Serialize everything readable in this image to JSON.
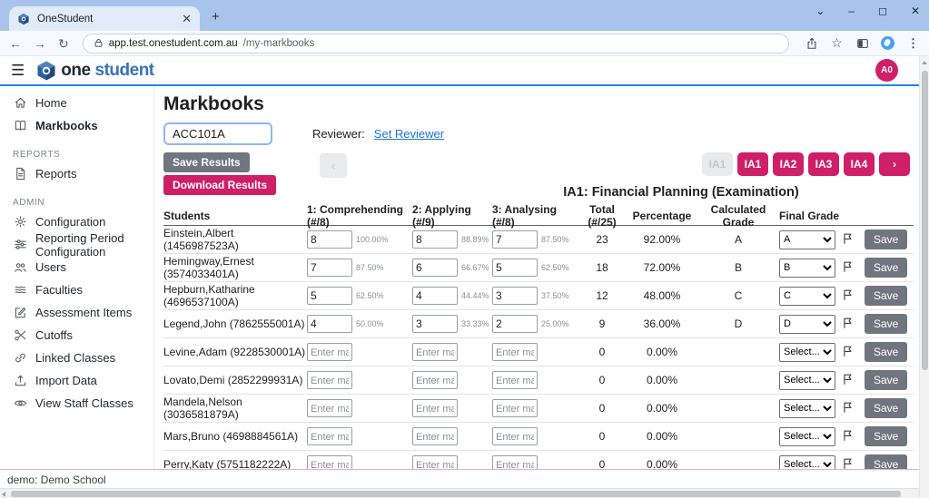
{
  "colors": {
    "accent_pink": "#D01F69",
    "save_gray": "#6F7680",
    "link_blue": "#1A73E8",
    "brand_blue": "#3573B9",
    "header_rule_blue": "#1E88E5"
  },
  "browser": {
    "tab_title": "OneStudent",
    "url_domain": "app.test.onestudent.com.au",
    "url_path": "/my-markbooks"
  },
  "header": {
    "logo_one": "one",
    "logo_student": "student",
    "avatar_initials": "A0"
  },
  "sidebar": {
    "groups": [
      {
        "heading": "",
        "items": [
          {
            "icon": "home",
            "label": "Home",
            "active": false
          },
          {
            "icon": "book",
            "label": "Markbooks",
            "active": true
          }
        ]
      },
      {
        "heading": "REPORTS",
        "items": [
          {
            "icon": "document",
            "label": "Reports",
            "active": false
          }
        ]
      },
      {
        "heading": "ADMIN",
        "items": [
          {
            "icon": "gear",
            "label": "Configuration",
            "active": false
          },
          {
            "icon": "sliders",
            "label": "Reporting Period Configuration",
            "active": false
          },
          {
            "icon": "users",
            "label": "Users",
            "active": false
          },
          {
            "icon": "layers",
            "label": "Faculties",
            "active": false
          },
          {
            "icon": "edit",
            "label": "Assessment Items",
            "active": false
          },
          {
            "icon": "scissors",
            "label": "Cutoffs",
            "active": false
          },
          {
            "icon": "link",
            "label": "Linked Classes",
            "active": false
          },
          {
            "icon": "upload",
            "label": "Import Data",
            "active": false
          },
          {
            "icon": "eye",
            "label": "View Staff Classes",
            "active": false
          }
        ]
      }
    ]
  },
  "main": {
    "page_title": "Markbooks",
    "class_selector_value": "ACC101A",
    "reviewer_label": "Reviewer:",
    "set_reviewer_link": "Set Reviewer",
    "save_results_label": "Save Results",
    "download_results_label": "Download Results",
    "prev_button_label": "‹",
    "ia_buttons": [
      {
        "label": "IA1",
        "disabled": true
      },
      {
        "label": "IA1",
        "disabled": false
      },
      {
        "label": "IA2",
        "disabled": false
      },
      {
        "label": "IA3",
        "disabled": false
      },
      {
        "label": "IA4",
        "disabled": false
      },
      {
        "label": "›",
        "disabled": false
      }
    ],
    "assessment_title": "IA1: Financial Planning (Examination)"
  },
  "table": {
    "headers": [
      "Students",
      "1: Comprehending (#/8)",
      "2: Applying (#/9)",
      "3: Analysing (#/8)",
      "Total (#/25)",
      "Percentage",
      "Calculated Grade",
      "Final Grade"
    ],
    "mark_placeholder": "Enter mark",
    "save_label": "Save",
    "rows": [
      {
        "student": "Einstein,Albert (1456987523A)",
        "marks": [
          {
            "value": "8",
            "pct": "100.00%"
          },
          {
            "value": "8",
            "pct": "88.89%"
          },
          {
            "value": "7",
            "pct": "87.50%"
          }
        ],
        "total": "23",
        "percentage": "92.00%",
        "calculated_grade": "A",
        "final_grade": "A"
      },
      {
        "student": "Hemingway,Ernest (3574033401A)",
        "marks": [
          {
            "value": "7",
            "pct": "87.50%"
          },
          {
            "value": "6",
            "pct": "66.67%"
          },
          {
            "value": "5",
            "pct": "62.50%"
          }
        ],
        "total": "18",
        "percentage": "72.00%",
        "calculated_grade": "B",
        "final_grade": "B"
      },
      {
        "student": "Hepburn,Katharine (4696537100A)",
        "marks": [
          {
            "value": "5",
            "pct": "62.50%"
          },
          {
            "value": "4",
            "pct": "44.44%"
          },
          {
            "value": "3",
            "pct": "37.50%"
          }
        ],
        "total": "12",
        "percentage": "48.00%",
        "calculated_grade": "C",
        "final_grade": "C"
      },
      {
        "student": "Legend,John (7862555001A)",
        "marks": [
          {
            "value": "4",
            "pct": "50.00%"
          },
          {
            "value": "3",
            "pct": "33.33%"
          },
          {
            "value": "2",
            "pct": "25.00%"
          }
        ],
        "total": "9",
        "percentage": "36.00%",
        "calculated_grade": "D",
        "final_grade": "D"
      },
      {
        "student": "Levine,Adam (9228530001A)",
        "marks": [
          {
            "value": "",
            "pct": ""
          },
          {
            "value": "",
            "pct": ""
          },
          {
            "value": "",
            "pct": ""
          }
        ],
        "total": "0",
        "percentage": "0.00%",
        "calculated_grade": "",
        "final_grade": "Select..."
      },
      {
        "student": "Lovato,Demi (2852299931A)",
        "marks": [
          {
            "value": "",
            "pct": ""
          },
          {
            "value": "",
            "pct": ""
          },
          {
            "value": "",
            "pct": ""
          }
        ],
        "total": "0",
        "percentage": "0.00%",
        "calculated_grade": "",
        "final_grade": "Select..."
      },
      {
        "student": "Mandela,Nelson (3036581879A)",
        "marks": [
          {
            "value": "",
            "pct": ""
          },
          {
            "value": "",
            "pct": ""
          },
          {
            "value": "",
            "pct": ""
          }
        ],
        "total": "0",
        "percentage": "0.00%",
        "calculated_grade": "",
        "final_grade": "Select..."
      },
      {
        "student": "Mars,Bruno (4698884561A)",
        "marks": [
          {
            "value": "",
            "pct": ""
          },
          {
            "value": "",
            "pct": ""
          },
          {
            "value": "",
            "pct": ""
          }
        ],
        "total": "0",
        "percentage": "0.00%",
        "calculated_grade": "",
        "final_grade": "Select..."
      },
      {
        "student": "Perry,Katy (5751182222A)",
        "marks": [
          {
            "value": "",
            "pct": ""
          },
          {
            "value": "",
            "pct": ""
          },
          {
            "value": "",
            "pct": ""
          }
        ],
        "total": "0",
        "percentage": "0.00%",
        "calculated_grade": "",
        "final_grade": "Select..."
      }
    ]
  },
  "footer": {
    "text": "demo: Demo School"
  }
}
